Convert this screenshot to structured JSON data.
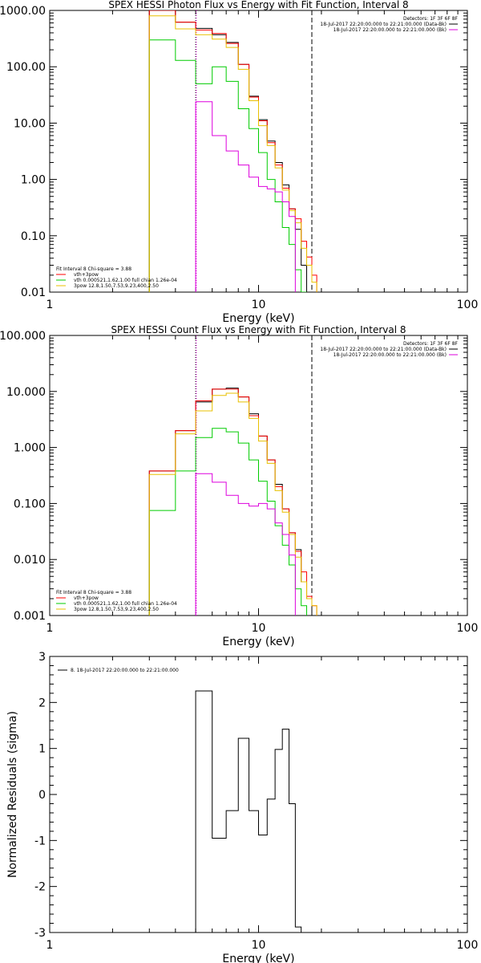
{
  "colors": {
    "axis": "#000000",
    "series_red": "#ff0000",
    "series_green": "#00cc00",
    "series_gold": "#e8c000",
    "series_magenta": "#dd00dd",
    "series_total": "#000000"
  },
  "chart_data": [
    {
      "type": "line",
      "step": true,
      "title": "SPEX HESSI Photon Flux vs Energy with Fit Function, Interval 8",
      "xlabel": "Energy (keV)",
      "ylabel": "",
      "xscale": "log",
      "yscale": "log",
      "xlim": [
        1,
        100
      ],
      "ylim": [
        0.01,
        1000
      ],
      "x_ticks": [
        "1",
        "10",
        "100"
      ],
      "y_ticks": [
        "0.01",
        "0.10",
        "1.00",
        "10.00",
        "100.00",
        "1000.00"
      ],
      "edges": [
        3,
        4,
        5,
        6,
        7,
        8,
        9,
        10,
        11,
        12,
        13,
        14,
        15,
        16,
        17,
        18,
        19,
        20,
        21,
        22,
        23
      ],
      "series": [
        {
          "key": "data",
          "color": "#000000",
          "values": [
            1000,
            620,
            480,
            370,
            270,
            110,
            30,
            11.5,
            4.8,
            2.0,
            0.8,
            0.3,
            0.13,
            0.03,
            null,
            null,
            null,
            null,
            null,
            null
          ]
        },
        {
          "key": "red",
          "color": "#ff0000",
          "values": [
            1000,
            620,
            450,
            390,
            260,
            110,
            29,
            11,
            4.5,
            1.8,
            0.7,
            0.3,
            0.2,
            0.08,
            0.042,
            0.02,
            null,
            null,
            null,
            null
          ]
        },
        {
          "key": "green",
          "color": "#00cc00",
          "values": [
            300,
            130,
            50,
            100,
            55,
            18,
            8,
            3.0,
            1.0,
            0.4,
            0.14,
            0.07,
            0.025,
            0.01,
            null,
            null,
            null,
            null,
            null,
            null
          ]
        },
        {
          "key": "gold",
          "color": "#e8c000",
          "values": [
            800,
            470,
            370,
            310,
            220,
            90,
            25,
            9,
            4.0,
            1.6,
            0.65,
            0.28,
            0.17,
            0.06,
            0.03,
            0.015,
            null,
            null,
            null,
            null
          ]
        },
        {
          "key": "magenta",
          "color": "#dd00dd",
          "values": [
            null,
            null,
            24,
            6,
            3.2,
            1.8,
            1.1,
            0.75,
            0.68,
            0.6,
            0.4,
            0.22,
            null,
            null,
            null,
            null,
            null,
            null,
            null,
            null
          ]
        }
      ],
      "vlines": [
        {
          "x": 5,
          "style": "dotted",
          "color": "#000000"
        },
        {
          "x": 5,
          "style": "dotted",
          "color": "#dd00dd"
        },
        {
          "x": 18,
          "style": "dashed",
          "color": "#000000"
        }
      ],
      "legend_topright": {
        "header": "Detectors: 1F 3F 6F 8F",
        "entries": [
          {
            "label": "18-Jul-2017 22:20:00.000 to 22:21:00.000 (Data-Bk)",
            "color": "#000000"
          },
          {
            "label": "18-Jul-2017 22:20:00.000 to 22:21:00.000 (Bk)",
            "color": "#dd00dd"
          }
        ]
      },
      "legend_bottomleft": {
        "header": "Fit Interval 8   Chi-square = 3.88",
        "entries": [
          {
            "label": "vth+3pow",
            "color": "#ff0000"
          },
          {
            "label": "vth 0.000521,1.62,1.00  full chian 1.26e-04",
            "color": "#00cc00"
          },
          {
            "label": "3pow 12.8,1.50,7.53,9.23,400,2.50",
            "color": "#e8c000"
          }
        ]
      }
    },
    {
      "type": "line",
      "step": true,
      "title": "SPEX HESSI Count Flux vs Energy with Fit Function, Interval 8",
      "xlabel": "Energy (keV)",
      "ylabel": "",
      "xscale": "log",
      "yscale": "log",
      "xlim": [
        1,
        100
      ],
      "ylim": [
        0.001,
        100
      ],
      "x_ticks": [
        "1",
        "10",
        "100"
      ],
      "y_ticks": [
        "0.001",
        "0.010",
        "0.100",
        "1.000",
        "10.000",
        "100.000"
      ],
      "edges": [
        3,
        4,
        5,
        6,
        7,
        8,
        9,
        10,
        11,
        12,
        13,
        14,
        15,
        16,
        17,
        18,
        19,
        20,
        21,
        22,
        23
      ],
      "series": [
        {
          "key": "data",
          "color": "#000000",
          "values": [
            0.38,
            2.0,
            6.5,
            11,
            11.5,
            8,
            4,
            1.6,
            0.6,
            0.22,
            0.08,
            0.03,
            0.015,
            0.004,
            0.002,
            null,
            null,
            null,
            null,
            null
          ]
        },
        {
          "key": "red",
          "color": "#ff0000",
          "values": [
            0.38,
            2.0,
            6.8,
            11,
            11,
            8,
            3.7,
            1.6,
            0.6,
            0.2,
            0.08,
            0.03,
            0.014,
            0.006,
            0.0022,
            0.0015,
            null,
            null,
            null,
            null
          ]
        },
        {
          "key": "green",
          "color": "#00cc00",
          "values": [
            0.075,
            0.38,
            1.5,
            2.2,
            1.9,
            1.2,
            0.6,
            0.25,
            0.11,
            0.04,
            0.018,
            0.008,
            0.003,
            0.0015,
            null,
            null,
            null,
            null,
            null,
            null
          ]
        },
        {
          "key": "gold",
          "color": "#e8c000",
          "values": [
            0.33,
            1.75,
            4.5,
            8.5,
            9.3,
            6.5,
            3.3,
            1.3,
            0.52,
            0.17,
            0.07,
            0.028,
            0.011,
            0.004,
            0.002,
            0.0015,
            null,
            null,
            null,
            null
          ]
        },
        {
          "key": "magenta",
          "color": "#dd00dd",
          "values": [
            null,
            null,
            0.34,
            0.24,
            0.14,
            0.1,
            0.09,
            0.1,
            0.08,
            0.045,
            0.028,
            0.012,
            null,
            null,
            null,
            null,
            null,
            null,
            null,
            null
          ]
        }
      ],
      "vlines": [
        {
          "x": 5,
          "style": "dotted",
          "color": "#000000"
        },
        {
          "x": 5,
          "style": "dotted",
          "color": "#dd00dd"
        },
        {
          "x": 18,
          "style": "dashed",
          "color": "#000000"
        }
      ],
      "legend_topright": {
        "header": "Detectors: 1F 3F 6F 8F",
        "entries": [
          {
            "label": "18-Jul-2017 22:20:00.000 to 22:21:00.000 (Data-Bk)",
            "color": "#000000"
          },
          {
            "label": "18-Jul-2017 22:20:00.000 to 22:21:00.000 (Bk)",
            "color": "#dd00dd"
          }
        ]
      },
      "legend_bottomleft": {
        "header": "Fit Interval 8   Chi-square = 3.88",
        "entries": [
          {
            "label": "vth+3pow",
            "color": "#ff0000"
          },
          {
            "label": "vth 0.000521,1.62,1.00  full chian 1.26e-04",
            "color": "#00cc00"
          },
          {
            "label": "3pow 12.8,1.50,7.53,9.23,400,2.50",
            "color": "#e8c000"
          }
        ]
      }
    },
    {
      "type": "line",
      "step": true,
      "title": "",
      "xlabel": "Energy (keV)",
      "ylabel": "Normalized Residuals (sigma)",
      "xscale": "log",
      "yscale": "linear",
      "xlim": [
        1,
        100
      ],
      "ylim": [
        -3,
        3
      ],
      "x_ticks": [
        "1",
        "10",
        "100"
      ],
      "y_ticks": [
        "3",
        "2",
        "1",
        "0",
        "-1",
        "-2",
        "-3"
      ],
      "edges": [
        5,
        6,
        7,
        8,
        9,
        10,
        11,
        12,
        13,
        14,
        15,
        16,
        17
      ],
      "series": [
        {
          "key": "residuals",
          "color": "#000000",
          "values": [
            2.25,
            -0.95,
            -0.35,
            1.22,
            -0.35,
            -0.88,
            -0.1,
            0.98,
            1.42,
            -0.2,
            -2.88,
            -3.0
          ]
        }
      ],
      "vlines": [],
      "legend_topleft": {
        "entries": [
          {
            "label": "8. 18-Jul-2017 22:20:00.000 to 22:21:00.000",
            "color": "#000000"
          }
        ]
      }
    }
  ]
}
